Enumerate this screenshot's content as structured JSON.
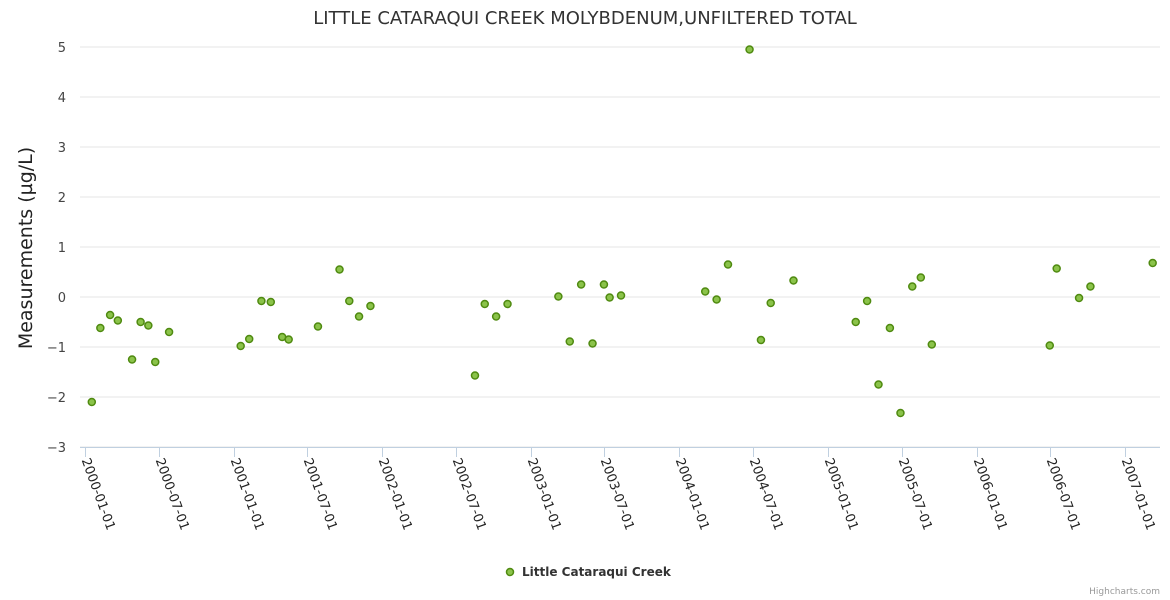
{
  "chart_data": {
    "type": "scatter",
    "title": "LITTLE CATARAQUI CREEK MOLYBDENUM,UNFILTERED TOTAL",
    "xlabel": "",
    "ylabel": "Measurements (µg/L)",
    "ylim": [
      -3,
      5
    ],
    "yticks": [
      5,
      4,
      3,
      2,
      1,
      0,
      -1,
      -2,
      -3
    ],
    "ytick_labels": [
      "5",
      "4",
      "3",
      "2",
      "1",
      "0",
      "−1",
      "−2",
      "−3"
    ],
    "xlim": [
      "1999-12-20",
      "2007-03-28"
    ],
    "xticks": [
      "2000-01-01",
      "2000-07-01",
      "2001-01-01",
      "2001-07-01",
      "2002-01-01",
      "2002-07-01",
      "2003-01-01",
      "2003-07-01",
      "2004-01-01",
      "2004-07-01",
      "2005-01-01",
      "2005-07-01",
      "2006-01-01",
      "2006-07-01",
      "2007-01-01"
    ],
    "marker_color": "#8bc34a",
    "marker_stroke": "#4f8a10",
    "legend": {
      "position": "bottom-center",
      "entries": [
        "Little Cataraqui Creek"
      ]
    },
    "series": [
      {
        "name": "Little Cataraqui Creek",
        "points": [
          [
            "2000-01-18",
            -2.1
          ],
          [
            "2000-02-08",
            -0.62
          ],
          [
            "2000-03-03",
            -0.36
          ],
          [
            "2000-03-22",
            -0.47
          ],
          [
            "2000-04-26",
            -1.25
          ],
          [
            "2000-05-17",
            -0.5
          ],
          [
            "2000-06-05",
            -0.57
          ],
          [
            "2000-06-22",
            -1.3
          ],
          [
            "2000-07-26",
            -0.7
          ],
          [
            "2001-01-18",
            -0.98
          ],
          [
            "2001-02-08",
            -0.84
          ],
          [
            "2001-03-10",
            -0.08
          ],
          [
            "2001-04-02",
            -0.1
          ],
          [
            "2001-04-30",
            -0.8
          ],
          [
            "2001-05-16",
            -0.85
          ],
          [
            "2001-07-27",
            -0.59
          ],
          [
            "2001-09-18",
            0.55
          ],
          [
            "2001-10-12",
            -0.08
          ],
          [
            "2001-11-05",
            -0.39
          ],
          [
            "2001-12-03",
            -0.18
          ],
          [
            "2002-08-17",
            -1.57
          ],
          [
            "2002-09-10",
            -0.14
          ],
          [
            "2002-10-08",
            -0.39
          ],
          [
            "2002-11-05",
            -0.14
          ],
          [
            "2003-03-10",
            0.01
          ],
          [
            "2003-04-07",
            -0.89
          ],
          [
            "2003-05-05",
            0.25
          ],
          [
            "2003-06-02",
            -0.93
          ],
          [
            "2003-06-30",
            0.25
          ],
          [
            "2003-07-14",
            -0.01
          ],
          [
            "2003-08-11",
            0.03
          ],
          [
            "2004-03-05",
            0.11
          ],
          [
            "2004-04-02",
            -0.05
          ],
          [
            "2004-04-30",
            0.65
          ],
          [
            "2004-06-22",
            4.95
          ],
          [
            "2004-07-20",
            -0.86
          ],
          [
            "2004-08-13",
            -0.12
          ],
          [
            "2004-10-08",
            0.33
          ],
          [
            "2005-03-10",
            -0.5
          ],
          [
            "2005-04-07",
            -0.08
          ],
          [
            "2005-05-05",
            -1.75
          ],
          [
            "2005-06-02",
            -0.62
          ],
          [
            "2005-06-28",
            -2.32
          ],
          [
            "2005-07-27",
            0.21
          ],
          [
            "2005-08-17",
            0.39
          ],
          [
            "2005-09-13",
            -0.95
          ],
          [
            "2006-06-30",
            -0.97
          ],
          [
            "2006-07-17",
            0.57
          ],
          [
            "2006-09-10",
            -0.02
          ],
          [
            "2006-10-08",
            0.21
          ],
          [
            "2007-03-10",
            0.68
          ]
        ]
      }
    ]
  },
  "credits": "Highcharts.com"
}
